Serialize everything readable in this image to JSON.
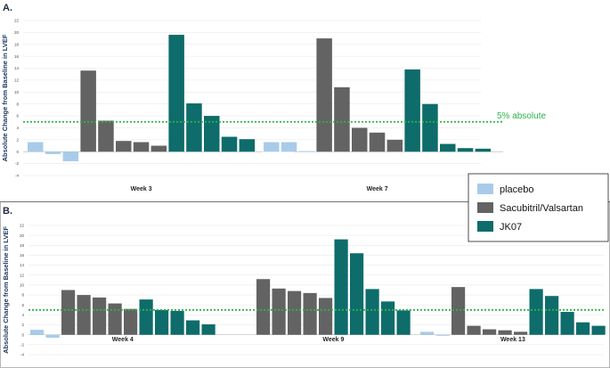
{
  "chart_data": [
    {
      "type": "bar",
      "panel_label": "A.",
      "ylabel": "Absolute Change from Baseline in LVEF",
      "ylim": [
        -4,
        22
      ],
      "yticks": [
        -4,
        -2,
        0,
        2,
        4,
        6,
        8,
        10,
        12,
        14,
        16,
        18,
        20,
        22
      ],
      "reference_line": {
        "value": 5,
        "label": "5% absolute",
        "color": "#2fb34a"
      },
      "groups": [
        {
          "label": "Week 3",
          "series": [
            {
              "name": "placebo",
              "values": [
                1.6,
                -0.4,
                -1.6
              ]
            },
            {
              "name": "Sacubitril/Valsartan",
              "values": [
                13.6,
                5.2,
                1.8,
                1.6,
                1.0
              ]
            },
            {
              "name": "JK07",
              "values": [
                19.6,
                8.1,
                6.0,
                2.5,
                2.1
              ]
            }
          ]
        },
        {
          "label": "Week 7",
          "series": [
            {
              "name": "placebo",
              "values": [
                1.6,
                1.6,
                0.1
              ]
            },
            {
              "name": "Sacubitril/Valsartan",
              "values": [
                19.0,
                10.8,
                4.0,
                3.2,
                2.0
              ]
            },
            {
              "name": "JK07",
              "values": [
                13.8,
                8.0,
                1.3,
                0.6,
                0.5
              ]
            }
          ]
        }
      ]
    },
    {
      "type": "bar",
      "panel_label": "B.",
      "ylabel": "Absolute Change from Baseline in LVEF",
      "ylim": [
        -4,
        22
      ],
      "yticks": [
        -4,
        -2,
        0,
        2,
        4,
        6,
        8,
        10,
        12,
        14,
        16,
        18,
        20,
        22
      ],
      "reference_line": {
        "value": 5,
        "label": "",
        "color": "#2fb34a"
      },
      "groups": [
        {
          "label": "Week 4",
          "series": [
            {
              "name": "placebo",
              "values": [
                1.0,
                -0.6
              ]
            },
            {
              "name": "Sacubitril/Valsartan",
              "values": [
                9.0,
                8.0,
                7.5,
                6.3,
                5.2
              ]
            },
            {
              "name": "JK07",
              "values": [
                7.1,
                5.0,
                4.8,
                2.9,
                2.1
              ]
            }
          ]
        },
        {
          "label": "Week 9",
          "series": [
            {
              "name": "placebo",
              "values": []
            },
            {
              "name": "Sacubitril/Valsartan",
              "values": [
                11.2,
                9.3,
                8.8,
                8.4,
                7.4
              ]
            },
            {
              "name": "JK07",
              "values": [
                19.2,
                16.4,
                9.2,
                6.7,
                4.9
              ]
            }
          ]
        },
        {
          "label": "Week 13",
          "series": [
            {
              "name": "placebo",
              "values": [
                0.6,
                -0.2
              ]
            },
            {
              "name": "Sacubitril/Valsartan",
              "values": [
                9.6,
                1.8,
                1.1,
                0.9,
                0.6
              ]
            },
            {
              "name": "JK07",
              "values": [
                9.2,
                7.8,
                4.6,
                2.5,
                1.8
              ]
            }
          ]
        }
      ]
    }
  ],
  "legend": [
    {
      "name": "placebo",
      "color": "#a9cbea"
    },
    {
      "name": "Sacubitril/Valsartan",
      "color": "#636363"
    },
    {
      "name": "JK07",
      "color": "#0e6c6b"
    }
  ]
}
